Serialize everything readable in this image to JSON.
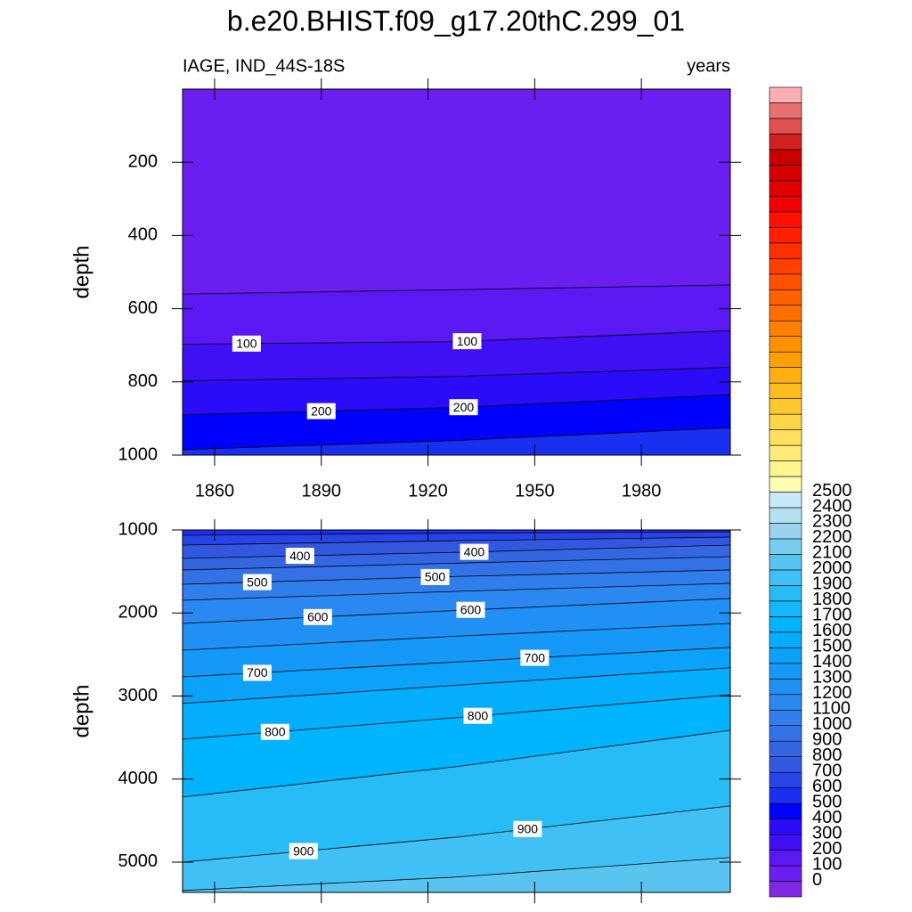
{
  "chart_data": {
    "type": "contour",
    "title": "b.e20.BHIST.f09_g17.20thC.299_01",
    "subtitle_left": "IAGE, IND_44S-18S",
    "subtitle_right": "years",
    "x": [
      1851,
      1928,
      2005
    ],
    "xlim": [
      1851,
      2005
    ],
    "xticks": [
      1860,
      1890,
      1920,
      1950,
      1980
    ],
    "panels": [
      {
        "ylabel": "depth",
        "ylim": [
          0,
          1000
        ],
        "yticks": [
          200,
          400,
          600,
          800,
          1000
        ],
        "top_color": "#6a1ef0",
        "show_xtick_labels": true,
        "contours": [
          {
            "level": 50,
            "color": "#5a18f2",
            "depth": [
              560,
              548,
              535
            ]
          },
          {
            "level": 100,
            "color": "#4010f5",
            "depth": [
              697,
              690,
              660
            ],
            "label_x": [
              1869,
              1931
            ]
          },
          {
            "level": 150,
            "color": "#2a0cf8",
            "depth": [
              797,
              785,
              760
            ]
          },
          {
            "level": 200,
            "color": "#0000ff",
            "depth": [
              890,
              870,
              835
            ],
            "label_x": [
              1890,
              1930
            ]
          },
          {
            "level": 250,
            "color": "#1a30f0",
            "depth": [
              985,
              960,
              925
            ]
          }
        ]
      },
      {
        "ylabel": "depth",
        "ylim": [
          1000,
          5365
        ],
        "yticks": [
          1000,
          2000,
          3000,
          4000,
          5000
        ],
        "top_color": "#1a30f0",
        "show_xtick_labels": false,
        "contours": [
          {
            "level": 300,
            "color": "#2844e6",
            "depth": [
              1064,
              1040,
              1021
            ]
          },
          {
            "level": 350,
            "color": "#3358e0",
            "depth": [
              1182,
              1130,
              1086
            ]
          },
          {
            "level": 400,
            "color": "#3566e2",
            "depth": [
              1343,
              1270,
              1182
            ],
            "label_x": [
              1884,
              1933
            ]
          },
          {
            "level": 450,
            "color": "#3372e6",
            "depth": [
              1482,
              1400,
              1322
            ]
          },
          {
            "level": 500,
            "color": "#2f7eec",
            "depth": [
              1654,
              1560,
              1482
            ],
            "label_x": [
              1872,
              1922
            ]
          },
          {
            "level": 550,
            "color": "#2a88f0",
            "depth": [
              1847,
              1740,
              1643
            ]
          },
          {
            "level": 600,
            "color": "#2090f5",
            "depth": [
              2126,
              1970,
              1825
            ],
            "label_x": [
              1889,
              1932
            ]
          },
          {
            "level": 650,
            "color": "#1598f8",
            "depth": [
              2448,
              2280,
              2126
            ]
          },
          {
            "level": 700,
            "color": "#0ca2fa",
            "depth": [
              2770,
              2590,
              2415
            ],
            "label_x": [
              1872,
              1950
            ]
          },
          {
            "level": 750,
            "color": "#04aefd",
            "depth": [
              3090,
              2870,
              2660
            ]
          },
          {
            "level": 800,
            "color": "#00b4ff",
            "depth": [
              3520,
              3260,
              2985
            ],
            "label_x": [
              1877,
              1934
            ]
          },
          {
            "level": 850,
            "color": "#28bcf6",
            "depth": [
              4216,
              3850,
              3413
            ]
          },
          {
            "level": 900,
            "color": "#40c0f4",
            "depth": [
              5000,
              4700,
              4323
            ],
            "label_x": [
              1885,
              1948
            ]
          },
          {
            "level": 950,
            "color": "#5ac4f0",
            "depth": [
              5343,
              5180,
              4945
            ]
          }
        ]
      }
    ],
    "colorbar": {
      "labels": [
        0,
        100,
        200,
        300,
        400,
        500,
        600,
        700,
        800,
        900,
        1000,
        1100,
        1200,
        1300,
        1400,
        1500,
        1600,
        1700,
        1800,
        1900,
        2000,
        2100,
        2200,
        2300,
        2400,
        2500
      ],
      "colors": [
        "#8028e6",
        "#6a1ef0",
        "#5a18f2",
        "#4010f5",
        "#2a0cf8",
        "#0000ff",
        "#1a30f0",
        "#2844e6",
        "#3358e0",
        "#3566e2",
        "#3372e6",
        "#2f7eec",
        "#2a88f0",
        "#2090f5",
        "#1598f8",
        "#0ca2fa",
        "#04aefd",
        "#00b4ff",
        "#14b8fa",
        "#28bcf6",
        "#40c0f4",
        "#5ac4f0",
        "#78ccee",
        "#98d4ee",
        "#b4e0f2",
        "#c8e8f8",
        "#fffcb4",
        "#fff490",
        "#ffec78",
        "#ffe060",
        "#ffd448",
        "#ffc830",
        "#ffbc20",
        "#ffb010",
        "#ffa000",
        "#ff9000",
        "#ff8000",
        "#ff7000",
        "#ff6000",
        "#ff5000",
        "#ff4000",
        "#ff3000",
        "#ff2000",
        "#ff1000",
        "#f00000",
        "#e00000",
        "#d40000",
        "#c80000",
        "#d02020",
        "#e05050",
        "#e87070",
        "#f8b0b0"
      ]
    }
  }
}
